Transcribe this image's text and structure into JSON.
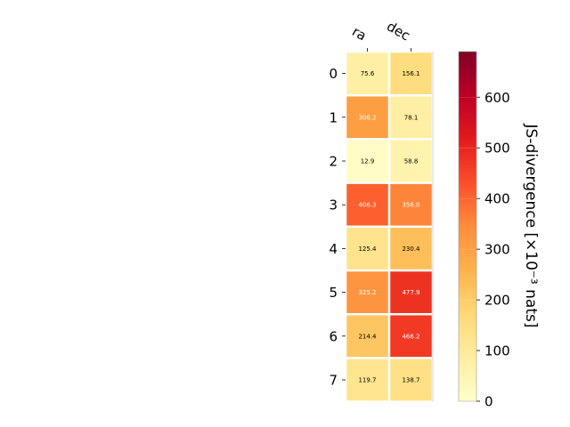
{
  "chart_data": {
    "type": "heatmap",
    "x_categories": [
      "ra",
      "dec"
    ],
    "y_categories": [
      "0",
      "1",
      "2",
      "3",
      "4",
      "5",
      "6",
      "7"
    ],
    "values": [
      [
        75.6,
        156.1
      ],
      [
        306.2,
        78.1
      ],
      [
        12.9,
        58.8
      ],
      [
        406.3,
        356.0
      ],
      [
        125.4,
        230.4
      ],
      [
        325.2,
        477.9
      ],
      [
        214.4,
        466.2
      ],
      [
        119.7,
        138.7
      ]
    ],
    "value_labels": [
      [
        "75.6",
        "156.1"
      ],
      [
        "306.2",
        "78.1"
      ],
      [
        "12.9",
        "58.8"
      ],
      [
        "406.3",
        "356.0"
      ],
      [
        "125.4",
        "230.4"
      ],
      [
        "325.2",
        "477.9"
      ],
      [
        "214.4",
        "466.2"
      ],
      [
        "119.7",
        "138.7"
      ]
    ],
    "colorbar": {
      "label": "JS-divergence [×10⁻³ nats]",
      "vmin": 0,
      "vmax": 690,
      "ticks": [
        0,
        100,
        200,
        300,
        400,
        500,
        600
      ],
      "colormap": "YlOrRd"
    },
    "x_ticks_position": "top",
    "grid": false
  }
}
